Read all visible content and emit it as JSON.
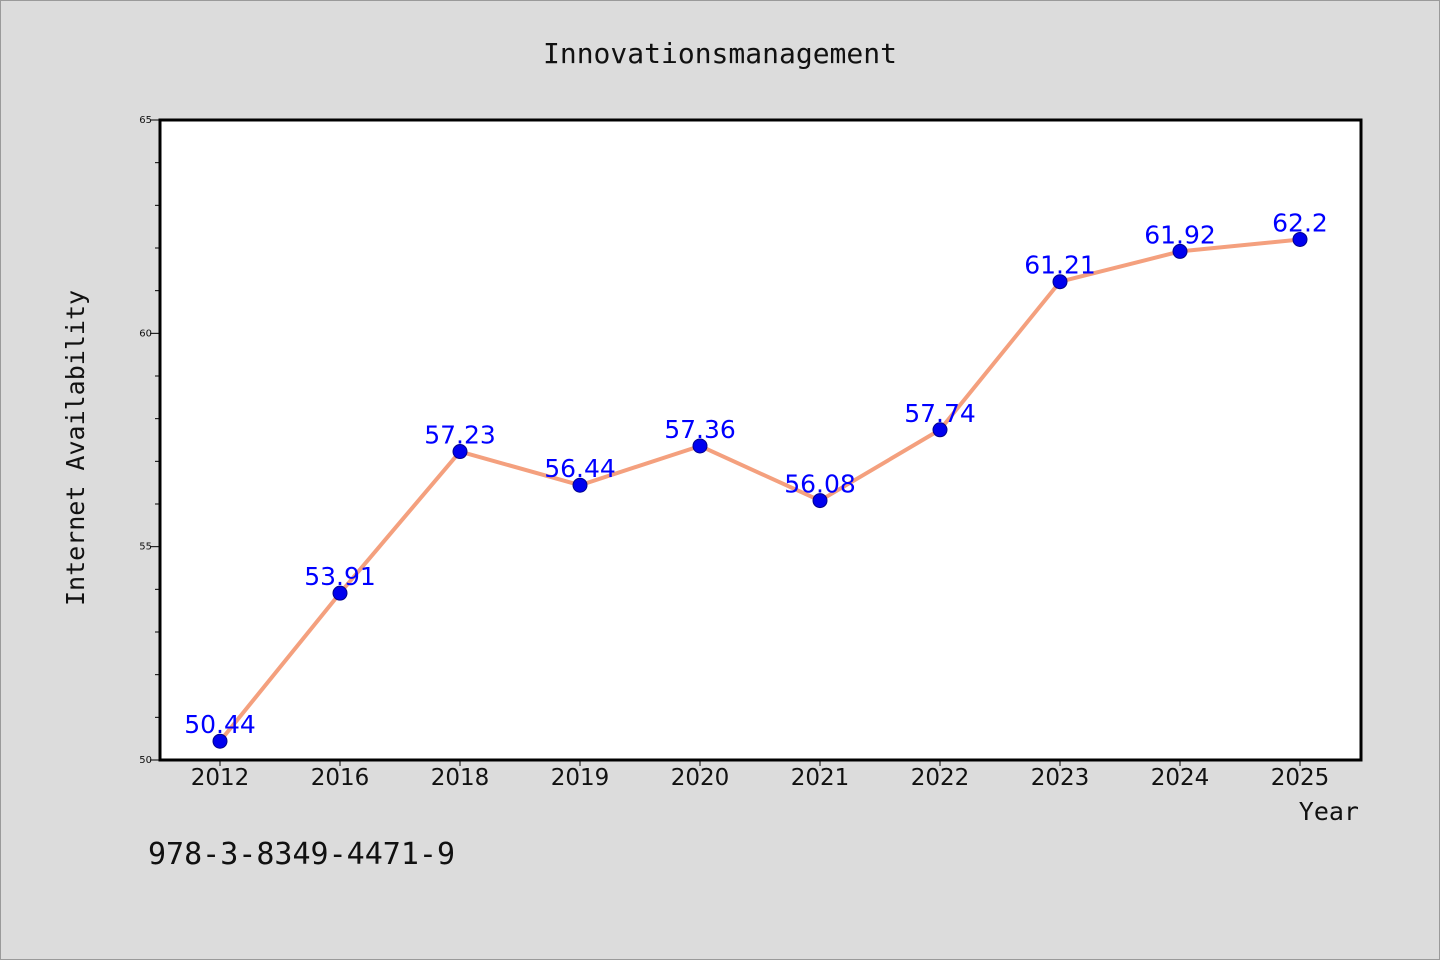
{
  "footer": {
    "isbn": "978-3-8349-4471-9"
  },
  "chart_data": {
    "type": "line",
    "title": "Innovationsmanagement",
    "xlabel": "Year",
    "ylabel": "Internet Availability",
    "categories": [
      "2012",
      "2016",
      "2018",
      "2019",
      "2020",
      "2021",
      "2022",
      "2023",
      "2024",
      "2025"
    ],
    "series": [
      {
        "values": [
          50.44,
          53.91,
          57.23,
          56.44,
          57.36,
          56.08,
          57.74,
          61.21,
          61.92,
          62.2
        ],
        "labels": [
          "50.44",
          "53.91",
          "57.23",
          "56.44",
          "57.36",
          "56.08",
          "57.74",
          "61.21",
          "61.92",
          "62.2"
        ]
      }
    ],
    "ylim": [
      50,
      65
    ],
    "y_ticks": [
      "50",
      "55",
      "60",
      "65"
    ],
    "grid": false,
    "colors": {
      "line": "#f4a07e",
      "marker": "#0000ee",
      "marker_edge": "#00008b",
      "data_label": "#0000ff",
      "plot_background": "#ffffff",
      "figure_background": "#dcdcdc"
    }
  }
}
